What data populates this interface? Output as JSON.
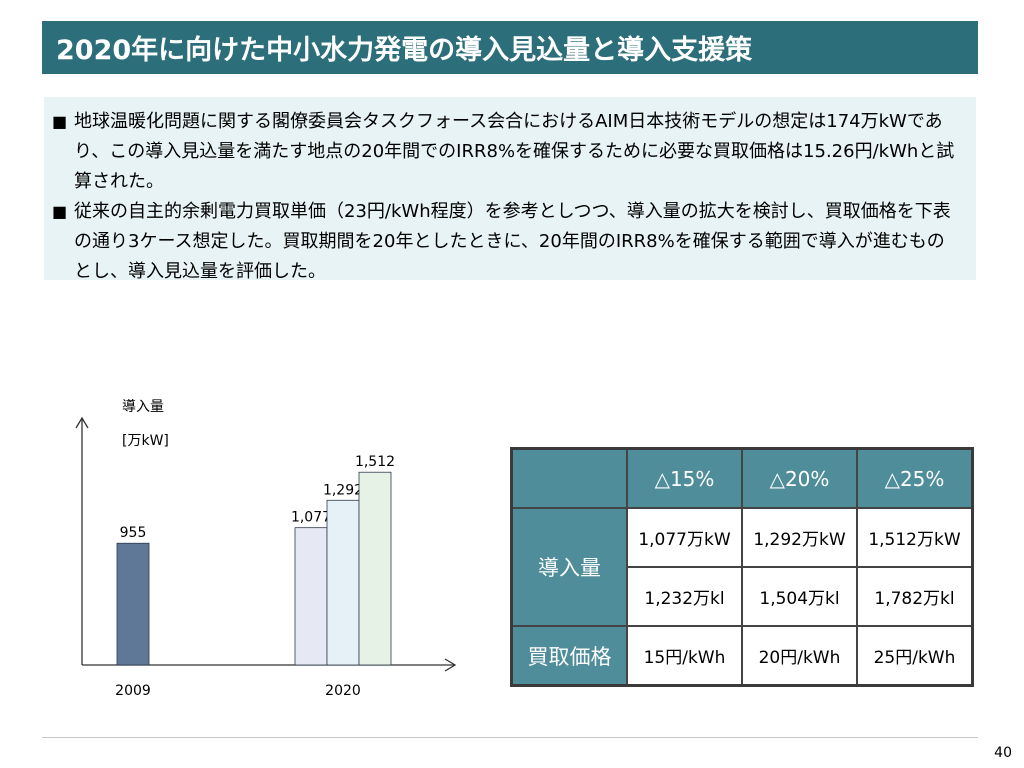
{
  "title": "2020年に向けた中小水力発電の導入見込量と導入支援策",
  "bullets": [
    {
      "mark": "■",
      "text": "地球温暖化問題に関する閣僚委員会タスクフォース会合におけるAIM日本技術モデルの想定は174万kWであり、この導入見込量を満たす地点の20年間でのIRR8%を確保するために必要な買取価格は15.26円/kWhと試算された。"
    },
    {
      "mark": "■",
      "text": "従来の自主的余剰電力買取単価（23円/kWh程度）を参考としつつ、導入量の拡大を検討し、買取価格を下表の通り3ケース想定した。買取期間を20年としたときに、20年間のIRR8%を確保する範囲で導入が進むものとし、導入見込量を評価した。"
    }
  ],
  "chart_data": {
    "type": "bar",
    "ylabel": "導入量",
    "yunit": "[万kW]",
    "groups": [
      {
        "label": "2009",
        "bars": [
          {
            "value": 955,
            "label": "955",
            "color": "#5f7898"
          }
        ]
      },
      {
        "label": "2020",
        "bars": [
          {
            "value": 1077,
            "label": "1,077",
            "color": "#e6e9f3"
          },
          {
            "value": 1292,
            "label": "1,292",
            "color": "#e6f1f7"
          },
          {
            "value": 1512,
            "label": "1,512",
            "color": "#e6f2e6"
          }
        ]
      }
    ]
  },
  "table": {
    "headers": [
      "",
      "△15%",
      "△20%",
      "△25%"
    ],
    "row_intro_label": "導入量",
    "intro_kw": [
      "1,077万kW",
      "1,292万kW",
      "1,512万kW"
    ],
    "intro_kl": [
      "1,232万kl",
      "1,504万kl",
      "1,782万kl"
    ],
    "price_label": "買取価格",
    "prices": [
      "15円/kWh",
      "20円/kWh",
      "25円/kWh"
    ]
  },
  "colors": {
    "title_bg": "#2c6e7a",
    "panel_bg": "#e8f3f5",
    "table_header": "#4e8d99"
  },
  "page_number": "40"
}
